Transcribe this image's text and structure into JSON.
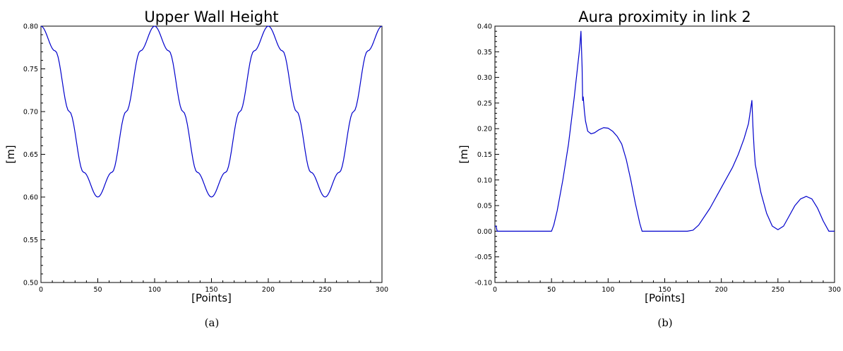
{
  "chart_data": [
    {
      "type": "line",
      "title": "Upper Wall Height",
      "xlabel": "[Points]",
      "ylabel": "[m]",
      "caption": "(a)",
      "xlim": [
        0,
        300
      ],
      "ylim": [
        0.5,
        0.8
      ],
      "xticks": [
        0,
        50,
        100,
        150,
        200,
        250,
        300
      ],
      "yticks": [
        0.5,
        0.55,
        0.6,
        0.65,
        0.7,
        0.75,
        0.8
      ],
      "ytick_decimals": 2,
      "grid": false,
      "color": "#0000cc",
      "series": [
        {
          "x": [
            0,
            12.5,
            25,
            37.5,
            50,
            62.5,
            75,
            87.5,
            100,
            112.5,
            125,
            137.5,
            150,
            162.5,
            175,
            187.5,
            200,
            212.5,
            225,
            237.5,
            250,
            262.5,
            275,
            287.5,
            300
          ],
          "y": [
            0.8,
            0.771,
            0.7,
            0.629,
            0.6,
            0.629,
            0.7,
            0.771,
            0.8,
            0.771,
            0.7,
            0.629,
            0.6,
            0.629,
            0.7,
            0.771,
            0.8,
            0.771,
            0.7,
            0.629,
            0.6,
            0.629,
            0.7,
            0.771,
            0.8
          ]
        }
      ]
    },
    {
      "type": "line",
      "title": "Aura proximity in link 2",
      "xlabel": "[Points]",
      "ylabel": "[m]",
      "caption": "(b)",
      "xlim": [
        0,
        300
      ],
      "ylim": [
        -0.1,
        0.4
      ],
      "xticks": [
        0,
        50,
        100,
        150,
        200,
        250,
        300
      ],
      "yticks": [
        -0.1,
        -0.05,
        0.0,
        0.05,
        0.1,
        0.15,
        0.2,
        0.25,
        0.3,
        0.35,
        0.4
      ],
      "ytick_decimals": 2,
      "grid": false,
      "color": "#0000cc",
      "series": [
        {
          "x": [
            0,
            1,
            2,
            5,
            50,
            52,
            55,
            60,
            65,
            70,
            73,
            75,
            76,
            77,
            77.5,
            78,
            79,
            80,
            82,
            85,
            88,
            92,
            96,
            100,
            104,
            108,
            112,
            116,
            120,
            124,
            128,
            130,
            132,
            140,
            170,
            175,
            180,
            190,
            200,
            210,
            215,
            220,
            224,
            227,
            228,
            229,
            230,
            235,
            240,
            245,
            250,
            255,
            260,
            265,
            270,
            275,
            280,
            285,
            290,
            295,
            300
          ],
          "y": [
            0.01,
            0.01,
            0.0,
            0.0,
            0.0,
            0.012,
            0.04,
            0.1,
            0.17,
            0.26,
            0.32,
            0.36,
            0.39,
            0.32,
            0.255,
            0.262,
            0.235,
            0.215,
            0.195,
            0.19,
            0.192,
            0.198,
            0.202,
            0.201,
            0.195,
            0.185,
            0.17,
            0.14,
            0.1,
            0.055,
            0.015,
            0.0,
            0.0,
            0.0,
            0.0,
            0.002,
            0.012,
            0.045,
            0.085,
            0.125,
            0.15,
            0.18,
            0.21,
            0.255,
            0.2,
            0.16,
            0.13,
            0.075,
            0.035,
            0.01,
            0.003,
            0.01,
            0.03,
            0.05,
            0.063,
            0.068,
            0.063,
            0.045,
            0.02,
            0.0,
            0.0
          ]
        }
      ]
    }
  ]
}
